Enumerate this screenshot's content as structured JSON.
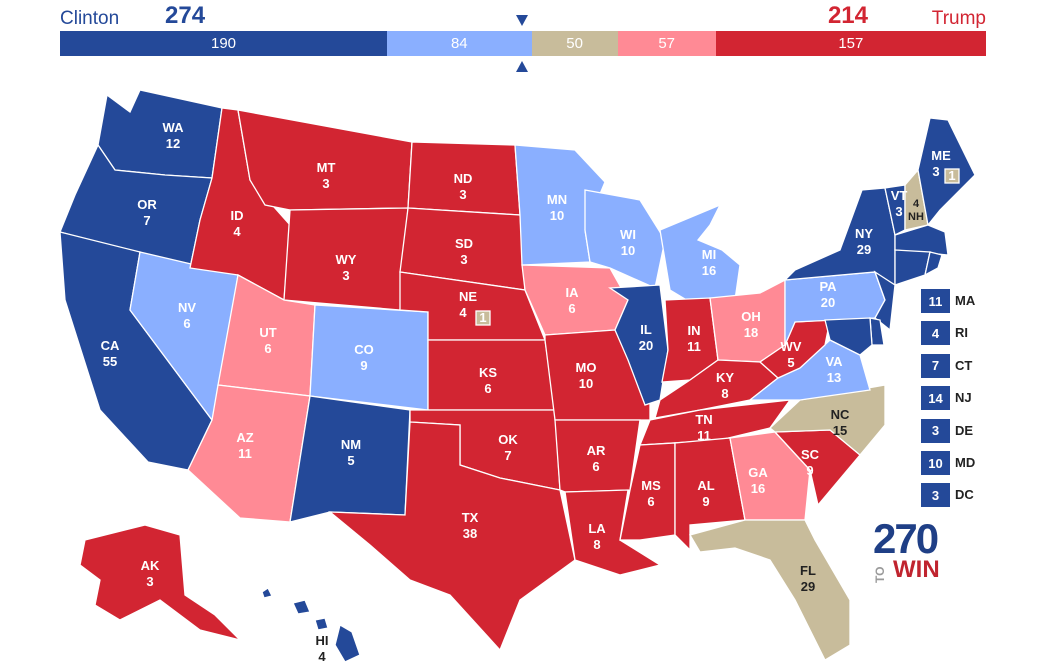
{
  "header": {
    "left_candidate": "Clinton",
    "left_total": "274",
    "right_candidate": "Trump",
    "right_total": "214",
    "bar_segments": [
      {
        "key": "safe_d",
        "label": "190",
        "value": 190,
        "color": "#244999"
      },
      {
        "key": "lean_d",
        "label": "84",
        "value": 84,
        "color": "#8aafff"
      },
      {
        "key": "tossup",
        "label": "50",
        "value": 50,
        "color": "#c8bc9b"
      },
      {
        "key": "lean_r",
        "label": "57",
        "value": 57,
        "color": "#ff8a95"
      },
      {
        "key": "safe_r",
        "label": "157",
        "value": 157,
        "color": "#d22532"
      }
    ],
    "threshold_votes": 270
  },
  "colors": {
    "safe_d": "#244999",
    "lean_d": "#8aafff",
    "tossup": "#c8bc9b",
    "lean_r": "#ff8a95",
    "safe_r": "#d22532"
  },
  "states": {
    "WA": {
      "abbr": "WA",
      "votes": "12",
      "rating": "safe_d"
    },
    "OR": {
      "abbr": "OR",
      "votes": "7",
      "rating": "safe_d"
    },
    "CA": {
      "abbr": "CA",
      "votes": "55",
      "rating": "safe_d"
    },
    "NV": {
      "abbr": "NV",
      "votes": "6",
      "rating": "lean_d"
    },
    "ID": {
      "abbr": "ID",
      "votes": "4",
      "rating": "safe_r"
    },
    "MT": {
      "abbr": "MT",
      "votes": "3",
      "rating": "safe_r"
    },
    "WY": {
      "abbr": "WY",
      "votes": "3",
      "rating": "safe_r"
    },
    "UT": {
      "abbr": "UT",
      "votes": "6",
      "rating": "lean_r"
    },
    "AZ": {
      "abbr": "AZ",
      "votes": "11",
      "rating": "lean_r"
    },
    "CO": {
      "abbr": "CO",
      "votes": "9",
      "rating": "lean_d"
    },
    "NM": {
      "abbr": "NM",
      "votes": "5",
      "rating": "safe_d"
    },
    "ND": {
      "abbr": "ND",
      "votes": "3",
      "rating": "safe_r"
    },
    "SD": {
      "abbr": "SD",
      "votes": "3",
      "rating": "safe_r"
    },
    "NE": {
      "abbr": "NE",
      "votes": "4",
      "rating": "safe_r",
      "district_votes": "1"
    },
    "KS": {
      "abbr": "KS",
      "votes": "6",
      "rating": "safe_r"
    },
    "OK": {
      "abbr": "OK",
      "votes": "7",
      "rating": "safe_r"
    },
    "TX": {
      "abbr": "TX",
      "votes": "38",
      "rating": "safe_r"
    },
    "MN": {
      "abbr": "MN",
      "votes": "10",
      "rating": "lean_d"
    },
    "IA": {
      "abbr": "IA",
      "votes": "6",
      "rating": "lean_r"
    },
    "MO": {
      "abbr": "MO",
      "votes": "10",
      "rating": "safe_r"
    },
    "AR": {
      "abbr": "AR",
      "votes": "6",
      "rating": "safe_r"
    },
    "LA": {
      "abbr": "LA",
      "votes": "8",
      "rating": "safe_r"
    },
    "WI": {
      "abbr": "WI",
      "votes": "10",
      "rating": "lean_d"
    },
    "IL": {
      "abbr": "IL",
      "votes": "20",
      "rating": "safe_d"
    },
    "MI": {
      "abbr": "MI",
      "votes": "16",
      "rating": "lean_d"
    },
    "IN": {
      "abbr": "IN",
      "votes": "11",
      "rating": "safe_r"
    },
    "OH": {
      "abbr": "OH",
      "votes": "18",
      "rating": "lean_r"
    },
    "KY": {
      "abbr": "KY",
      "votes": "8",
      "rating": "safe_r"
    },
    "TN": {
      "abbr": "TN",
      "votes": "11",
      "rating": "safe_r"
    },
    "MS": {
      "abbr": "MS",
      "votes": "6",
      "rating": "safe_r"
    },
    "AL": {
      "abbr": "AL",
      "votes": "9",
      "rating": "safe_r"
    },
    "GA": {
      "abbr": "GA",
      "votes": "16",
      "rating": "lean_r"
    },
    "FL": {
      "abbr": "FL",
      "votes": "29",
      "rating": "tossup"
    },
    "SC": {
      "abbr": "SC",
      "votes": "9",
      "rating": "safe_r"
    },
    "NC": {
      "abbr": "NC",
      "votes": "15",
      "rating": "tossup"
    },
    "VA": {
      "abbr": "VA",
      "votes": "13",
      "rating": "lean_d"
    },
    "WV": {
      "abbr": "WV",
      "votes": "5",
      "rating": "safe_r"
    },
    "PA": {
      "abbr": "PA",
      "votes": "20",
      "rating": "lean_d"
    },
    "NY": {
      "abbr": "NY",
      "votes": "29",
      "rating": "safe_d"
    },
    "VT": {
      "abbr": "VT",
      "votes": "3",
      "rating": "safe_d"
    },
    "NH": {
      "abbr": "NH",
      "votes": "4",
      "rating": "tossup"
    },
    "ME": {
      "abbr": "ME",
      "votes": "3",
      "rating": "safe_d",
      "district_votes": "1"
    },
    "AK": {
      "abbr": "AK",
      "votes": "3",
      "rating": "safe_r"
    },
    "HI": {
      "abbr": "HI",
      "votes": "4",
      "rating": "safe_d"
    }
  },
  "small_states": [
    {
      "abbr": "MA",
      "votes": "11",
      "rating": "safe_d"
    },
    {
      "abbr": "RI",
      "votes": "4",
      "rating": "safe_d"
    },
    {
      "abbr": "CT",
      "votes": "7",
      "rating": "safe_d"
    },
    {
      "abbr": "NJ",
      "votes": "14",
      "rating": "safe_d"
    },
    {
      "abbr": "DE",
      "votes": "3",
      "rating": "safe_d"
    },
    {
      "abbr": "MD",
      "votes": "10",
      "rating": "safe_d"
    },
    {
      "abbr": "DC",
      "votes": "3",
      "rating": "safe_d"
    }
  ],
  "logo": {
    "number": "270",
    "small": "TO",
    "word": "WIN"
  }
}
